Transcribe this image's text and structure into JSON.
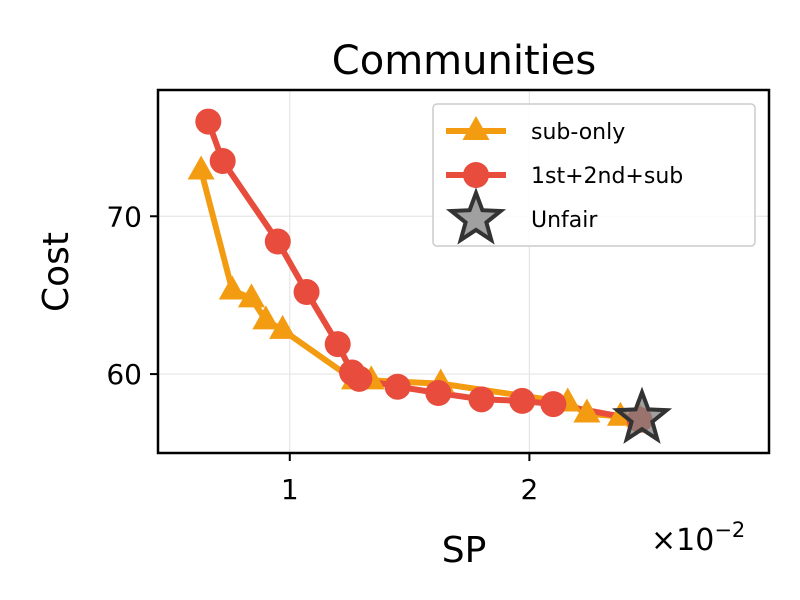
{
  "chart_data": {
    "type": "line",
    "title": "Communities",
    "xlabel": "SP",
    "ylabel": "Cost",
    "x_multiplier_base": "×10",
    "x_multiplier_exp": "−2",
    "xlim": [
      0.45,
      3.0
    ],
    "ylim": [
      55.0,
      78.0
    ],
    "xticks": [
      {
        "v": 1,
        "label": "1"
      },
      {
        "v": 2,
        "label": "2"
      }
    ],
    "yticks": [
      {
        "v": 60,
        "label": "60"
      },
      {
        "v": 70,
        "label": "70"
      }
    ],
    "grid": true,
    "legend_position": "upper right",
    "series": [
      {
        "name": "sub-only",
        "color": "#f39c12",
        "marker": "triangle",
        "points": [
          [
            0.63,
            72.9
          ],
          [
            0.76,
            65.3
          ],
          [
            0.84,
            64.8
          ],
          [
            0.9,
            63.4
          ],
          [
            0.97,
            62.8
          ],
          [
            1.27,
            59.6
          ],
          [
            1.34,
            59.6
          ],
          [
            1.63,
            59.4
          ],
          [
            2.16,
            58.2
          ],
          [
            2.24,
            57.5
          ],
          [
            2.38,
            57.3
          ],
          [
            2.46,
            57.2
          ]
        ]
      },
      {
        "name": "1st+2nd+sub",
        "color": "#e74c3c",
        "marker": "circle",
        "points": [
          [
            0.66,
            76.0
          ],
          [
            0.72,
            73.5
          ],
          [
            0.95,
            68.4
          ],
          [
            1.07,
            65.2
          ],
          [
            1.2,
            61.9
          ],
          [
            1.26,
            60.1
          ],
          [
            1.29,
            59.7
          ],
          [
            1.45,
            59.2
          ],
          [
            1.62,
            58.8
          ],
          [
            1.8,
            58.4
          ],
          [
            1.97,
            58.3
          ],
          [
            2.1,
            58.1
          ],
          [
            2.46,
            57.1
          ]
        ]
      },
      {
        "name": "Unfair",
        "color": "#808080",
        "marker": "star",
        "points": [
          [
            2.47,
            57.2
          ]
        ]
      }
    ]
  }
}
